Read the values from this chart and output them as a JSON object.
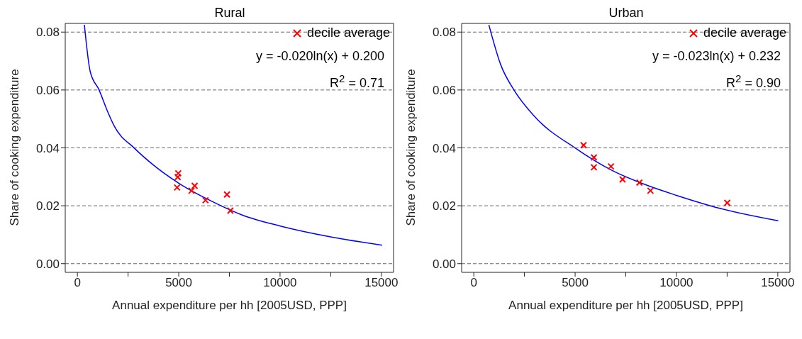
{
  "chart_data": [
    {
      "type": "scatter",
      "title": "Rural",
      "xlabel": "Annual expenditure per hh [2005USD, PPP]",
      "ylabel": "Share of cooking expenditure",
      "xlim": [
        -600,
        15600
      ],
      "ylim": [
        -0.003,
        0.083
      ],
      "xticks": [
        0,
        {
          "value": 2500,
          "label": null
        },
        5000,
        {
          "value": 7500,
          "label": null
        },
        10000,
        {
          "value": 12500,
          "label": null
        },
        15000
      ],
      "yticks": [
        {
          "value": 0,
          "label": "0.00"
        },
        0.02,
        0.04,
        0.06,
        0.08
      ],
      "grid": "y",
      "legend": "top right",
      "annotations": [
        "y = -0.020ln(x) + 0.200",
        "R$^{2}$ = 0.71"
      ],
      "series": [
        {
          "name": "decile average",
          "marker": "cross",
          "color": "#ff0000",
          "x": [
            4976,
            4950,
            4917,
            5631,
            5786,
            6321,
            7381,
            7548
          ],
          "values": [
            0.0312,
            0.0299,
            0.0263,
            0.0252,
            0.0269,
            0.0219,
            0.0239,
            0.0183
          ]
        },
        {
          "type": "line",
          "marker": "none",
          "color": "#0000ff",
          "x": [
            345,
            631,
            1071,
            1464,
            1821,
            2810,
            3726,
            5000,
            6583,
            8131,
            10012,
            12536,
            15036
          ],
          "values": [
            0.0825,
            0.0664,
            0.06,
            0.053,
            0.0475,
            0.0399,
            0.0342,
            0.0278,
            0.0217,
            0.0168,
            0.013,
            0.0092,
            0.0064
          ]
        }
      ]
    },
    {
      "type": "scatter",
      "title": "Urban",
      "xlabel": "Annual expenditure per hh [2005USD, PPP]",
      "ylabel": "Share of cooking expenditure",
      "xlim": [
        -600,
        15600
      ],
      "ylim": [
        -0.003,
        0.083
      ],
      "xticks": [
        0,
        {
          "value": 2500,
          "label": null
        },
        5000,
        {
          "value": 7500,
          "label": null
        },
        10000,
        {
          "value": 12500,
          "label": null
        },
        15000
      ],
      "yticks": [
        {
          "value": 0,
          "label": "0.00"
        },
        0.02,
        0.04,
        0.06,
        0.08
      ],
      "grid": "y",
      "legend": "top right",
      "annotations": [
        "y = -0.023ln(x) + 0.232",
        "R$^{2}$ = 0.90"
      ],
      "series": [
        {
          "name": "decile average",
          "marker": "cross",
          "color": "#ff0000",
          "x": [
            5416,
            5926,
            5926,
            6770,
            7340,
            8171,
            8717,
            12506
          ],
          "values": [
            0.0409,
            0.0367,
            0.0333,
            0.0336,
            0.0291,
            0.028,
            0.0252,
            0.021
          ]
        },
        {
          "type": "line",
          "marker": "none",
          "color": "#0000ff",
          "x": [
            745,
            1330,
            1983,
            2993,
            5012,
            6793,
            8575,
            10000,
            12138,
            15024
          ],
          "values": [
            0.0825,
            0.0687,
            0.06,
            0.0509,
            0.0399,
            0.0323,
            0.027,
            0.0236,
            0.0191,
            0.0148
          ]
        }
      ]
    }
  ]
}
